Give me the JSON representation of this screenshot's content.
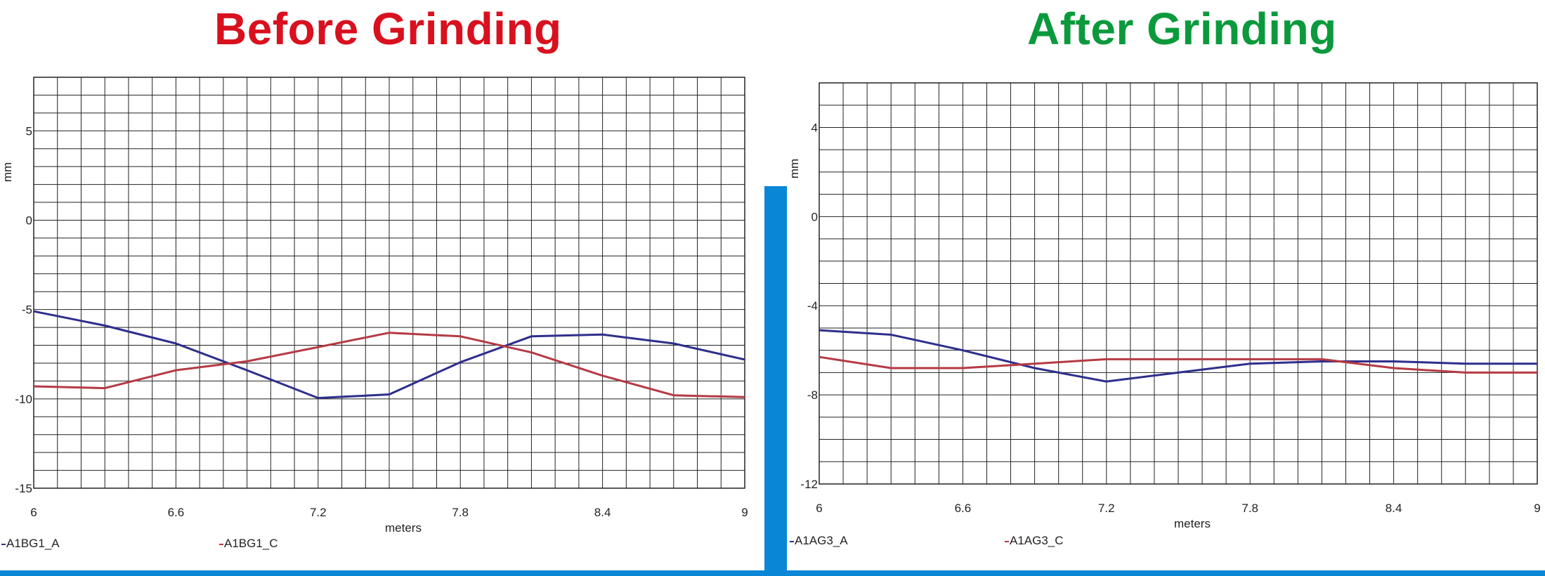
{
  "titles": {
    "left": "Before Grinding",
    "right": "After Grinding",
    "left_color": "#d9101e",
    "right_color": "#0a9a3c"
  },
  "colors": {
    "series_a": "#2e2e8c",
    "series_c": "#b53a44",
    "grid": "#222222",
    "accent_bar": "#0a86d6"
  },
  "chart_data": [
    {
      "type": "line",
      "title": "Before Grinding",
      "xlabel": "meters",
      "ylabel": "mm",
      "xlim": [
        6,
        9
      ],
      "ylim": [
        -15,
        8
      ],
      "xticks": [
        6,
        6.6,
        7.2,
        7.8,
        8.4,
        9
      ],
      "yticks": [
        5,
        0,
        -5,
        -10,
        -15
      ],
      "grid": true,
      "legend_position": "bottom-left",
      "series": [
        {
          "name": "A1BG1_A",
          "x": [
            6,
            6.3,
            6.6,
            6.9,
            7.2,
            7.5,
            7.8,
            8.1,
            8.4,
            8.7,
            9
          ],
          "y": [
            -5.1,
            -5.9,
            -6.9,
            -8.4,
            -9.95,
            -9.75,
            -7.95,
            -6.5,
            -6.4,
            -6.9,
            -7.8
          ]
        },
        {
          "name": "A1BG1_C",
          "x": [
            6,
            6.3,
            6.6,
            6.9,
            7.2,
            7.5,
            7.8,
            8.1,
            8.4,
            8.7,
            9
          ],
          "y": [
            -9.3,
            -9.4,
            -8.4,
            -7.9,
            -7.1,
            -6.3,
            -6.5,
            -7.4,
            -8.7,
            -9.8,
            -9.9
          ]
        }
      ]
    },
    {
      "type": "line",
      "title": "After Grinding",
      "xlabel": "meters",
      "ylabel": "mm",
      "xlim": [
        6,
        9
      ],
      "ylim": [
        -12,
        6
      ],
      "xticks": [
        6,
        6.6,
        7.2,
        7.8,
        8.4,
        9
      ],
      "yticks": [
        4,
        0,
        -4,
        -8,
        -12
      ],
      "grid": true,
      "legend_position": "bottom-left",
      "series": [
        {
          "name": "A1AG3_A",
          "x": [
            6,
            6.3,
            6.6,
            6.9,
            7.2,
            7.5,
            7.8,
            8.1,
            8.4,
            8.7,
            9
          ],
          "y": [
            -5.1,
            -5.3,
            -6.0,
            -6.8,
            -7.4,
            -7.0,
            -6.6,
            -6.5,
            -6.5,
            -6.6,
            -6.6
          ]
        },
        {
          "name": "A1AG3_C",
          "x": [
            6,
            6.3,
            6.6,
            6.9,
            7.2,
            7.5,
            7.8,
            8.1,
            8.4,
            8.7,
            9
          ],
          "y": [
            -6.3,
            -6.8,
            -6.8,
            -6.6,
            -6.4,
            -6.4,
            -6.4,
            -6.4,
            -6.8,
            -7.0,
            -7.0
          ]
        }
      ]
    }
  ]
}
